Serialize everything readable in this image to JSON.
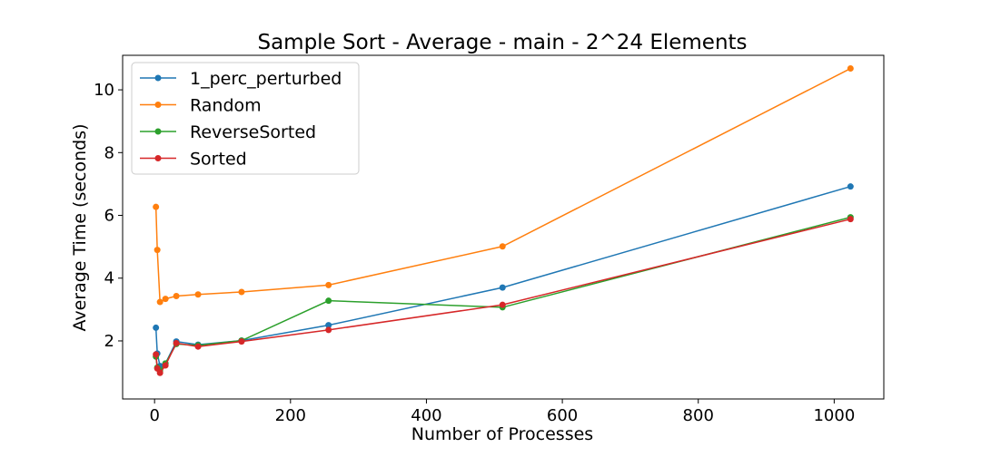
{
  "chart_data": {
    "type": "line",
    "title": "Sample Sort - Average - main - 2^24 Elements",
    "xlabel": "Number of Processes",
    "ylabel": "Average Time (seconds)",
    "xlim": [
      -47,
      1073
    ],
    "ylim": [
      0.15,
      11.1
    ],
    "xticks": [
      0,
      200,
      400,
      600,
      800,
      1000
    ],
    "yticks": [
      2,
      4,
      6,
      8,
      10
    ],
    "grid": false,
    "legend_position": "top-left",
    "series": [
      {
        "name": "1_perc_perturbed",
        "color": "#1f77b4",
        "x": [
          2,
          4,
          8,
          16,
          32,
          64,
          128,
          256,
          512,
          1024
        ],
        "y": [
          2.42,
          1.6,
          1.2,
          1.28,
          1.98,
          1.88,
          2.01,
          2.5,
          3.7,
          6.92
        ]
      },
      {
        "name": "Random",
        "color": "#ff7f0e",
        "x": [
          2,
          4,
          8,
          16,
          32,
          64,
          128,
          256,
          512,
          1024
        ],
        "y": [
          6.27,
          4.9,
          3.24,
          3.34,
          3.43,
          3.48,
          3.56,
          3.78,
          5.01,
          10.68
        ]
      },
      {
        "name": "ReverseSorted",
        "color": "#2ca02c",
        "x": [
          2,
          4,
          8,
          16,
          32,
          64,
          128,
          256,
          512,
          1024
        ],
        "y": [
          1.5,
          1.15,
          1.05,
          1.28,
          1.9,
          1.86,
          2.01,
          3.28,
          3.07,
          5.94
        ]
      },
      {
        "name": "Sorted",
        "color": "#d62728",
        "x": [
          2,
          4,
          8,
          16,
          32,
          64,
          128,
          256,
          512,
          1024
        ],
        "y": [
          1.57,
          1.12,
          0.98,
          1.22,
          1.93,
          1.82,
          1.98,
          2.35,
          3.15,
          5.88
        ]
      }
    ]
  }
}
